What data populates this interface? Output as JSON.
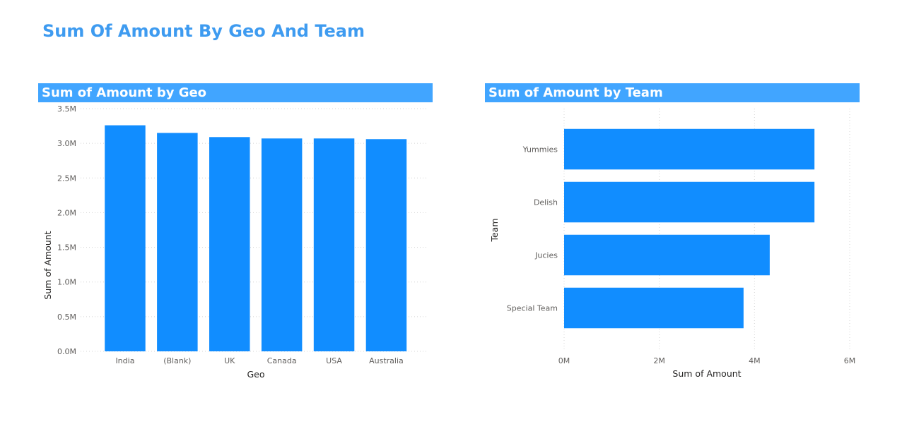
{
  "page": {
    "title": "Sum Of Amount By Geo And Team"
  },
  "colors": {
    "bar": "#118dff",
    "header_bg": "#41a5ff",
    "title": "#3e9bf0",
    "grid": "#d4d4d4"
  },
  "chart_data": [
    {
      "type": "bar",
      "title": "Sum of Amount by Geo",
      "xlabel": "Geo",
      "ylabel": "Sum of Amount",
      "categories": [
        "India",
        "(Blank)",
        "UK",
        "Canada",
        "USA",
        "Australia"
      ],
      "values": [
        3260000,
        3150000,
        3090000,
        3070000,
        3070000,
        3060000
      ],
      "ylim": [
        0,
        3500000
      ],
      "yticks": [
        0,
        500000,
        1000000,
        1500000,
        2000000,
        2500000,
        3000000,
        3500000
      ],
      "yticklabels": [
        "0.0M",
        "0.5M",
        "1.0M",
        "1.5M",
        "2.0M",
        "2.5M",
        "3.0M",
        "3.5M"
      ],
      "grid": true,
      "orientation": "vertical"
    },
    {
      "type": "bar",
      "title": "Sum of Amount by Team",
      "xlabel": "Sum of Amount",
      "ylabel": "Team",
      "categories": [
        "Yummies",
        "Delish",
        "Jucies",
        "Special Team"
      ],
      "values": [
        5260000,
        5260000,
        4320000,
        3770000
      ],
      "xlim": [
        0,
        6000000
      ],
      "xticks": [
        0,
        2000000,
        4000000,
        6000000
      ],
      "xticklabels": [
        "0M",
        "2M",
        "4M",
        "6M"
      ],
      "grid": true,
      "orientation": "horizontal"
    }
  ]
}
